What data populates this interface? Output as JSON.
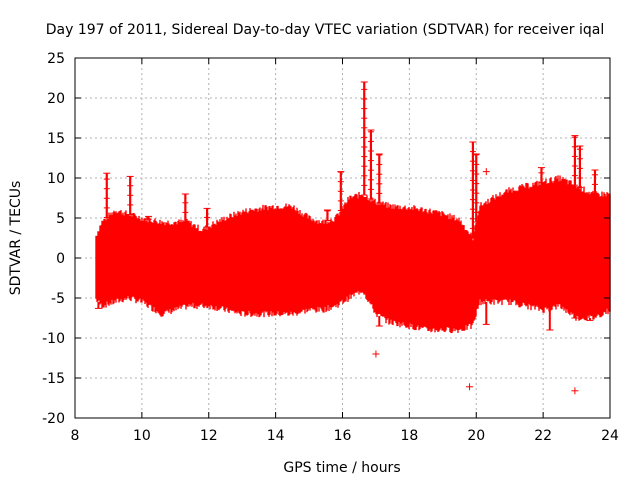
{
  "chart_data": {
    "type": "scatter",
    "title": "Day 197 of 2011, Sidereal Day-to-day VTEC variation (SDTVAR) for receiver iqal",
    "xlabel": "GPS time / hours",
    "ylabel": "SDTVAR / TECUs",
    "xlim": [
      8,
      24
    ],
    "ylim": [
      -20,
      25
    ],
    "xticks": [
      "8",
      "10",
      "12",
      "14",
      "16",
      "18",
      "20",
      "22",
      "24"
    ],
    "yticks": [
      "-20",
      "-15",
      "-10",
      "-5",
      "0",
      "5",
      "10",
      "15",
      "20",
      "25"
    ],
    "grid": true,
    "marker": "+",
    "color": "#ff0000",
    "envelope": {
      "x": [
        8.6,
        8.8,
        9.2,
        9.6,
        10.0,
        10.6,
        11.0,
        11.4,
        11.8,
        12.0,
        12.5,
        13.0,
        13.5,
        14.0,
        14.5,
        15.0,
        15.4,
        15.8,
        16.2,
        16.6,
        17.0,
        17.4,
        18.0,
        18.5,
        19.0,
        19.5,
        19.9,
        20.1,
        20.5,
        21.0,
        21.5,
        22.0,
        22.5,
        23.0,
        23.5,
        24.0
      ],
      "upper": [
        2.5,
        4.5,
        6.0,
        5.5,
        5.0,
        4.5,
        4.5,
        4.5,
        3.5,
        4.0,
        5.0,
        5.8,
        6.2,
        6.5,
        6.5,
        5.0,
        4.5,
        5.0,
        7.5,
        8.0,
        7.0,
        6.5,
        6.3,
        6.0,
        5.5,
        4.8,
        2.5,
        6.5,
        7.5,
        8.5,
        9.0,
        9.5,
        10.0,
        9.0,
        8.0,
        8.0
      ],
      "lower": [
        -5.0,
        -6.0,
        -5.5,
        -5.0,
        -5.5,
        -7.0,
        -6.5,
        -6.0,
        -6.0,
        -6.0,
        -6.5,
        -7.0,
        -7.0,
        -7.0,
        -7.0,
        -6.5,
        -6.5,
        -6.0,
        -5.0,
        -4.0,
        -7.0,
        -8.0,
        -8.5,
        -9.0,
        -9.0,
        -9.0,
        -8.5,
        -5.5,
        -5.5,
        -5.5,
        -6.0,
        -6.5,
        -6.0,
        -7.5,
        -7.5,
        -6.5
      ]
    },
    "spikes": [
      {
        "x": 8.95,
        "y": 10.6
      },
      {
        "x": 9.65,
        "y": 10.2
      },
      {
        "x": 10.2,
        "y": 5.2
      },
      {
        "x": 11.3,
        "y": 8.0
      },
      {
        "x": 11.95,
        "y": 6.2
      },
      {
        "x": 15.55,
        "y": 6.0
      },
      {
        "x": 15.95,
        "y": 10.8
      },
      {
        "x": 16.65,
        "y": 22.0
      },
      {
        "x": 16.85,
        "y": 16.0
      },
      {
        "x": 17.1,
        "y": 13.0
      },
      {
        "x": 19.9,
        "y": 14.5
      },
      {
        "x": 20.0,
        "y": 13.0
      },
      {
        "x": 21.95,
        "y": 11.3
      },
      {
        "x": 22.95,
        "y": 15.3
      },
      {
        "x": 23.1,
        "y": 14.0
      },
      {
        "x": 23.55,
        "y": 11.0
      }
    ],
    "dips": [
      {
        "x": 8.7,
        "y": -6.3
      },
      {
        "x": 14.6,
        "y": -5.0
      },
      {
        "x": 17.1,
        "y": -8.5
      },
      {
        "x": 20.3,
        "y": -8.3
      },
      {
        "x": 22.2,
        "y": -9.0
      },
      {
        "x": 22.95,
        "y": -7.5
      },
      {
        "x": 23.4,
        "y": -7.8
      }
    ],
    "outliers": [
      {
        "x": 17.0,
        "y": -12.0
      },
      {
        "x": 19.8,
        "y": -16.1
      },
      {
        "x": 20.3,
        "y": 10.8
      },
      {
        "x": 22.95,
        "y": -16.6
      }
    ]
  }
}
